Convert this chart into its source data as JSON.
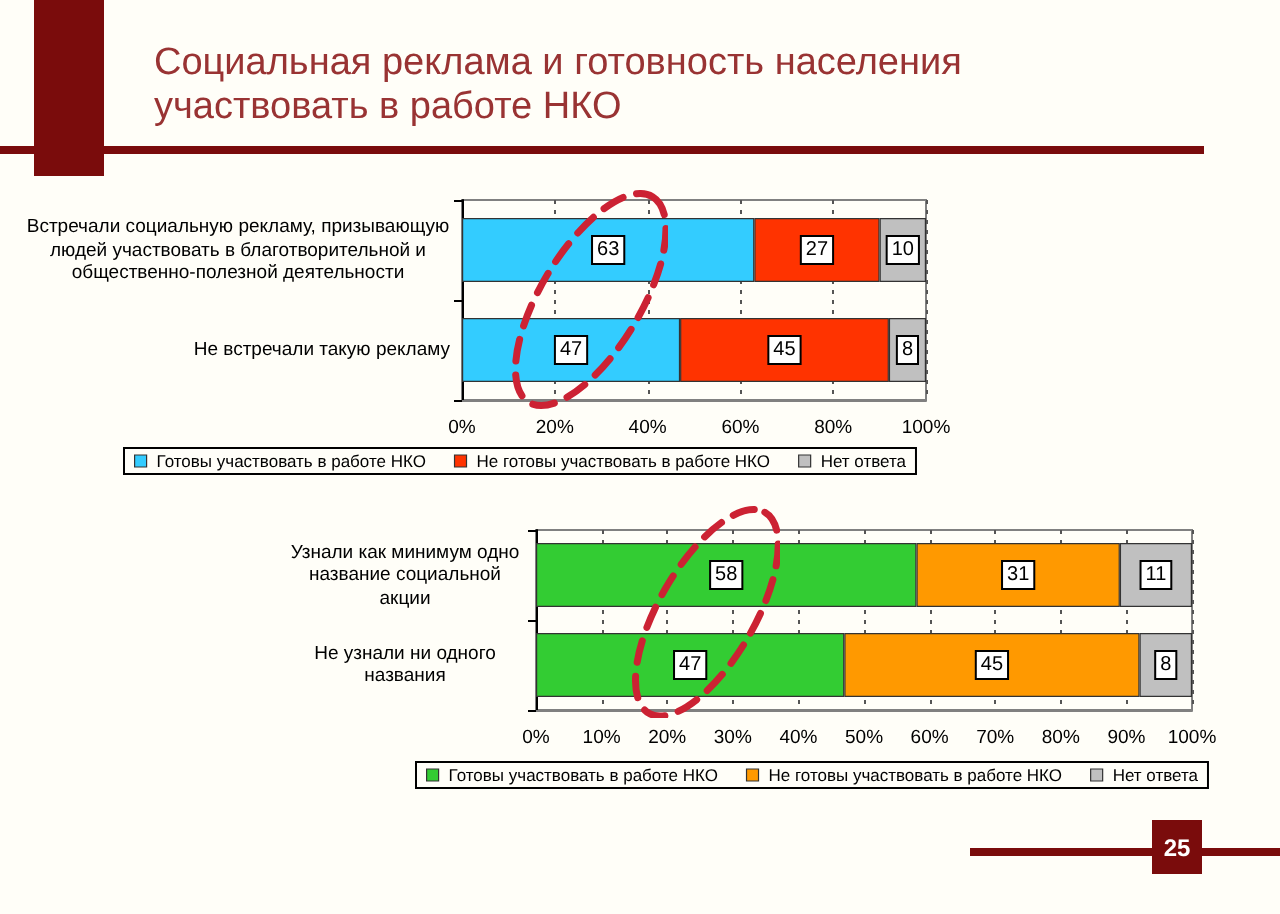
{
  "chart_data": [
    {
      "type": "bar",
      "orientation": "horizontal",
      "stacked": true,
      "title": "Социальная реклама и готовность населения участвовать в работе НКО",
      "categories": [
        "Встречали социальную рекламу, призывающую людей участвовать в благотворительной и общественно-полезной деятельности",
        "Не встречали такую рекламу"
      ],
      "series": [
        {
          "name": "Готовы участвовать в работе НКО",
          "color": "#33ccff",
          "values": [
            63,
            47
          ]
        },
        {
          "name": "Не готовы участвовать в работе НКО",
          "color": "#ff3300",
          "values": [
            27,
            45
          ]
        },
        {
          "name": "Нет ответа",
          "color": "#c0c0c0",
          "values": [
            10,
            8
          ]
        }
      ],
      "xlim": [
        0,
        100
      ],
      "xticks": [
        {
          "value": 0,
          "label": "0%"
        },
        {
          "value": 20,
          "label": "20%"
        },
        {
          "value": 40,
          "label": "40%"
        },
        {
          "value": 60,
          "label": "60%"
        },
        {
          "value": 80,
          "label": "80%"
        },
        {
          "value": 100,
          "label": "100%"
        }
      ],
      "grid": "x",
      "legend": "bottom",
      "data_labels": true
    },
    {
      "type": "bar",
      "orientation": "horizontal",
      "stacked": true,
      "categories": [
        "Узнали как минимум одно название социальной акции",
        "Не узнали ни одного названия"
      ],
      "series": [
        {
          "name": "Готовы участвовать в работе НКО",
          "color": "#33cc33",
          "values": [
            58,
            47
          ]
        },
        {
          "name": "Не готовы участвовать в работе НКО",
          "color": "#ff9900",
          "values": [
            31,
            45
          ]
        },
        {
          "name": "Нет ответа",
          "color": "#c0c0c0",
          "values": [
            11,
            8
          ]
        }
      ],
      "xlim": [
        0,
        100
      ],
      "xticks": [
        {
          "value": 0,
          "label": "0%"
        },
        {
          "value": 10,
          "label": "10%"
        },
        {
          "value": 20,
          "label": "20%"
        },
        {
          "value": 30,
          "label": "30%"
        },
        {
          "value": 40,
          "label": "40%"
        },
        {
          "value": 50,
          "label": "50%"
        },
        {
          "value": 60,
          "label": "60%"
        },
        {
          "value": 70,
          "label": "70%"
        },
        {
          "value": 80,
          "label": "80%"
        },
        {
          "value": 90,
          "label": "90%"
        },
        {
          "value": 100,
          "label": "100%"
        }
      ],
      "grid": "x",
      "legend": "bottom",
      "data_labels": true,
      "annotations": [
        "25"
      ]
    }
  ]
}
